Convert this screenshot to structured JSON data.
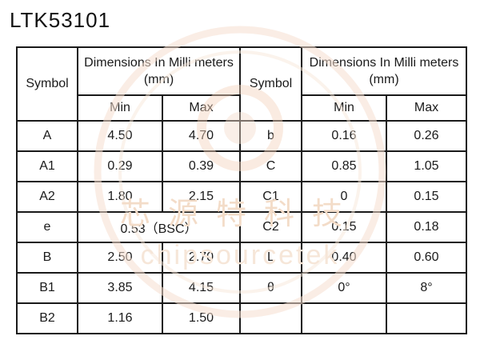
{
  "title": "LTK53101",
  "header": {
    "symbol": "Symbol",
    "dimensions": "Dimensions In Milli meters (mm)",
    "min": "Min",
    "max": "Max"
  },
  "left_rows": [
    {
      "symbol": "A",
      "min": "4.50",
      "max": "4.70"
    },
    {
      "symbol": "A1",
      "min": "0.29",
      "max": "0.39"
    },
    {
      "symbol": "A2",
      "min": "1.80",
      "max": "2.15"
    },
    {
      "symbol": "e",
      "merged": "0.53（BSC）"
    },
    {
      "symbol": "B",
      "min": "2.50",
      "max": "2.70"
    },
    {
      "symbol": "B1",
      "min": "3.85",
      "max": "4.15"
    },
    {
      "symbol": "B2",
      "min": "1.16",
      "max": "1.50"
    }
  ],
  "right_rows": [
    {
      "symbol": "b",
      "min": "0.16",
      "max": "0.26"
    },
    {
      "symbol": "C",
      "min": "0.85",
      "max": "1.05"
    },
    {
      "symbol": "C1",
      "min": "0",
      "max": "0.15"
    },
    {
      "symbol": "C2",
      "min": "0.15",
      "max": "0.18"
    },
    {
      "symbol": "L",
      "min": "0.40",
      "max": "0.60"
    },
    {
      "symbol": "θ",
      "min": "0°",
      "max": "8°"
    },
    {
      "symbol": "",
      "min": "",
      "max": ""
    }
  ],
  "watermark": {
    "chinese": "芯源特科技",
    "english": "chipsourcetek",
    "color": "#f3dcc8"
  }
}
